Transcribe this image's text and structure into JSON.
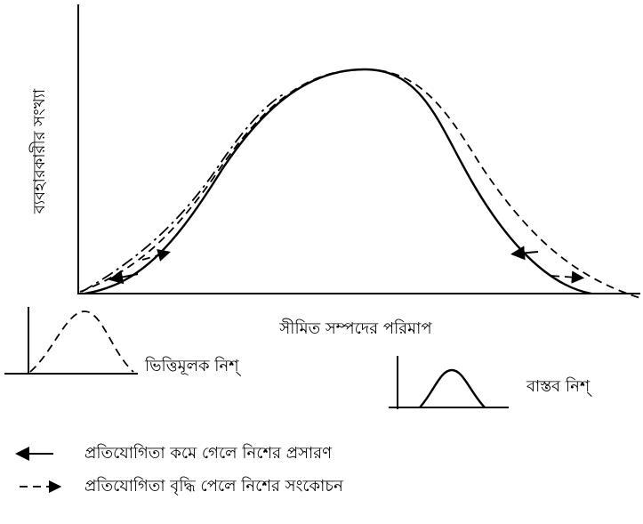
{
  "diagram": {
    "y_axis_label": "ব্যবহারকারীর সংখ্যা",
    "x_axis_label": "সীমিত সম্পদের পরিমাপ",
    "fundamental_niche": "ভিত্তিমূলক নিশ্",
    "realized_niche": "বাস্তব নিশ্",
    "legend": [
      "প্রতিযোগিতা কমে গেলে নিশের প্রসারণ",
      "প্রতিযোগিতা বৃদ্ধি পেলে নিশের সংকোচন"
    ]
  }
}
